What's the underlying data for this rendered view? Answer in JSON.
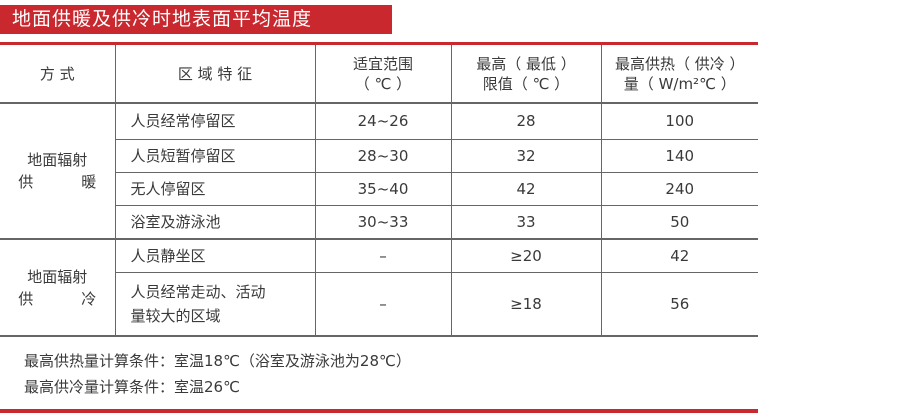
{
  "title": "地面供暖及供冷时地表面平均温度",
  "accent_color": "#c8282e",
  "table": {
    "headers": [
      {
        "line1": "方 式",
        "line2": ""
      },
      {
        "line1": "区 域 特 征",
        "line2": ""
      },
      {
        "line1": "适宜范围",
        "line2": "（ ℃ ）"
      },
      {
        "line1": "最高（ 最低 ）",
        "line2": "限值（ ℃ ）"
      },
      {
        "line1": "最高供热（ 供冷 ）",
        "line2": "量（ W/m²℃ ）"
      }
    ],
    "groups": [
      {
        "mode_line1": "地面辐射",
        "mode_line2": "供 暖",
        "rows": [
          {
            "zone": "人员经常停留区",
            "range": "24~26",
            "limit": "28",
            "max": "100"
          },
          {
            "zone": "人员短暂停留区",
            "range": "28~30",
            "limit": "32",
            "max": "140"
          },
          {
            "zone": "无人停留区",
            "range": "35~40",
            "limit": "42",
            "max": "240"
          },
          {
            "zone": "浴室及游泳池",
            "range": "30~33",
            "limit": "33",
            "max": "50"
          }
        ]
      },
      {
        "mode_line1": "地面辐射",
        "mode_line2": "供 冷",
        "rows": [
          {
            "zone": "人员静坐区",
            "zone2": "",
            "range": "–",
            "limit": "≥20",
            "max": "42"
          },
          {
            "zone": "人员经常走动、活动",
            "zone2": "量较大的区域",
            "range": "–",
            "limit": "≥18",
            "max": "56"
          }
        ]
      }
    ]
  },
  "notes": [
    "最高供热量计算条件：室温18℃（浴室及游泳池为28℃）",
    "最高供冷量计算条件：室温26℃"
  ]
}
